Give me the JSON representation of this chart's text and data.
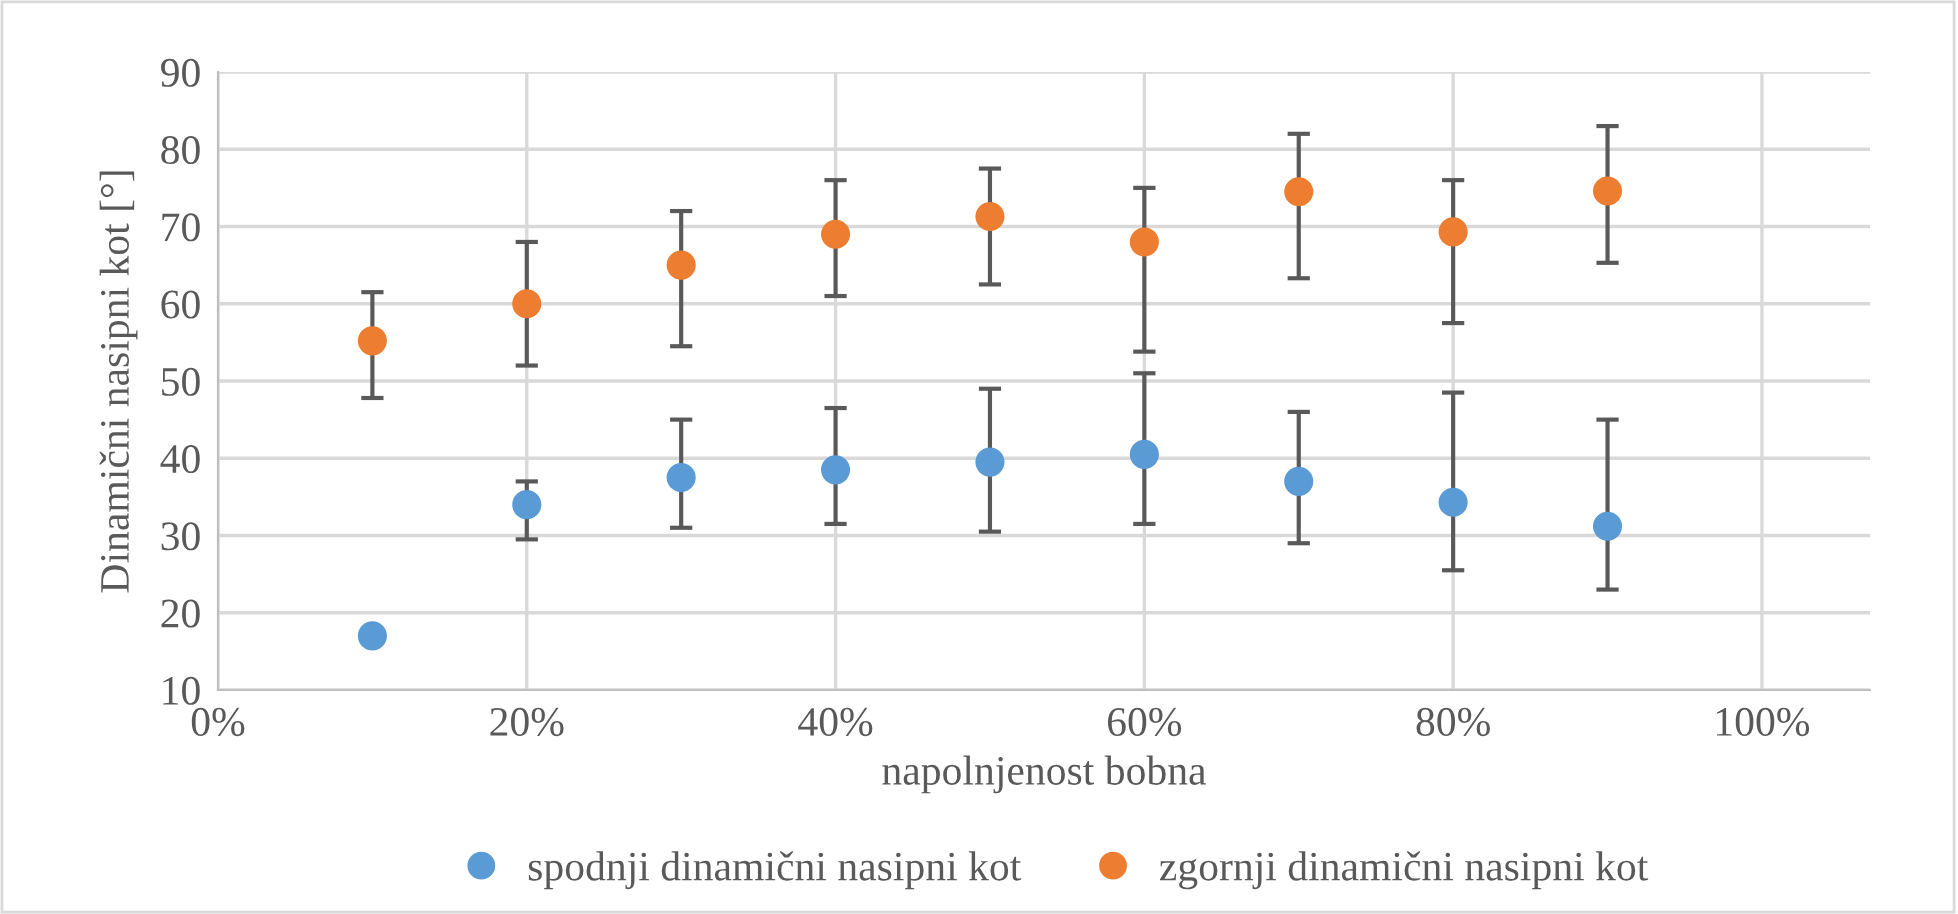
{
  "chart_data": {
    "type": "scatter",
    "xlabel": "napolnjenost bobna",
    "ylabel": "Dinamični nasipni kot [°]",
    "xlim": [
      0,
      107
    ],
    "ylim": [
      10,
      90
    ],
    "xticks": [
      {
        "value": 0,
        "label": "0%"
      },
      {
        "value": 20,
        "label": "20%"
      },
      {
        "value": 40,
        "label": "40%"
      },
      {
        "value": 60,
        "label": "60%"
      },
      {
        "value": 80,
        "label": "80%"
      },
      {
        "value": 100,
        "label": "100%"
      }
    ],
    "yticks": [
      10,
      20,
      30,
      40,
      50,
      60,
      70,
      80,
      90
    ],
    "grid": true,
    "legend": "bottom",
    "marker": "circle",
    "x": [
      10,
      20,
      30,
      40,
      50,
      60,
      70,
      80,
      90
    ],
    "series": [
      {
        "name": "spodnji dinamični nasipni kot",
        "color": "#5b9bd5",
        "values": [
          17,
          34,
          37.5,
          38.5,
          39.5,
          40.5,
          37,
          34.3,
          31.2
        ],
        "errors": [
          null,
          [
            29.5,
            37
          ],
          [
            31,
            45
          ],
          [
            31.5,
            46.5
          ],
          [
            30.5,
            49
          ],
          [
            31.5,
            51
          ],
          [
            29,
            46
          ],
          [
            25.5,
            48.5
          ],
          [
            23,
            45
          ]
        ]
      },
      {
        "name": "zgornji dinamični nasipni kot",
        "color": "#ed7d31",
        "values": [
          55.2,
          60,
          65,
          69,
          71.3,
          68,
          74.5,
          69.3,
          74.6
        ],
        "errors": [
          [
            47.8,
            61.5
          ],
          [
            52,
            68
          ],
          [
            54.5,
            72
          ],
          [
            61,
            76
          ],
          [
            62.5,
            77.5
          ],
          [
            53.8,
            75
          ],
          [
            63.3,
            82
          ],
          [
            57.5,
            76
          ],
          [
            65.3,
            83
          ]
        ]
      }
    ]
  }
}
